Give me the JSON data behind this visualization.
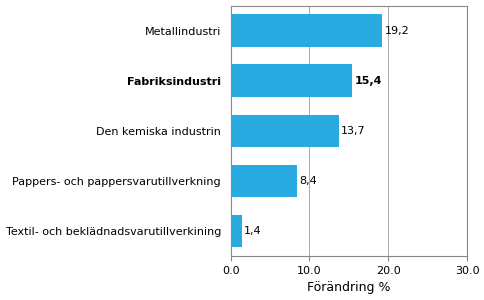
{
  "categories": [
    "Textil- och beklädnadsvarutillverkining",
    "Pappers- och pappersvarutillverkning",
    "Den kemiska industrin",
    "Fabriksindustri",
    "Metallindustri"
  ],
  "values": [
    1.4,
    8.4,
    13.7,
    15.4,
    19.2
  ],
  "labels": [
    "1,4",
    "8,4",
    "13,7",
    "15,4",
    "19,2"
  ],
  "bold_index": 3,
  "bar_color": "#29abe2",
  "xlabel": "Förändring %",
  "xlim": [
    0,
    30
  ],
  "xticks": [
    0.0,
    10.0,
    20.0,
    30.0
  ],
  "xtick_labels": [
    "0.0",
    "10.0",
    "20.0",
    "30.0"
  ],
  "grid_color": "#aaaaaa",
  "background_color": "#ffffff",
  "label_fontsize": 8.0,
  "xlabel_fontsize": 9.0,
  "value_fontsize": 8.0,
  "bar_height": 0.65,
  "figsize": [
    4.85,
    3.0
  ],
  "dpi": 100
}
